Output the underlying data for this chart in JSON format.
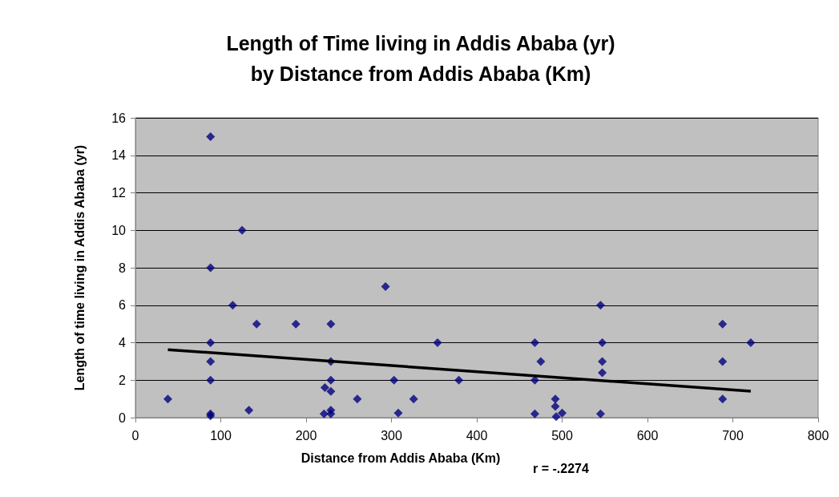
{
  "chart_data": {
    "type": "scatter",
    "title": "Length of Time living in Addis Ababa (yr)\nby Distance from Addis Ababa (Km)",
    "xlabel": "Distance from Addis Ababa (Km)",
    "ylabel": "Length of time living in Addis Ababa (yr)",
    "annotations": [
      "r = -.2274"
    ],
    "xlim": [
      0,
      800
    ],
    "xticks": [
      0,
      100,
      200,
      300,
      400,
      500,
      600,
      700,
      800
    ],
    "ylim": [
      0,
      16
    ],
    "yticks": [
      0,
      2,
      4,
      6,
      8,
      10,
      12,
      14,
      16
    ],
    "grid": "y",
    "marker": "diamond",
    "series": [
      {
        "color": "#000080",
        "x": [
          38,
          88,
          88,
          88,
          88,
          88,
          88,
          88,
          125,
          114,
          142,
          133,
          188,
          229,
          229,
          229,
          222,
          229,
          221,
          229,
          229,
          260,
          293,
          303,
          308,
          326,
          354,
          379,
          468,
          468,
          468,
          475,
          492,
          492,
          493,
          500,
          545,
          547,
          547,
          547,
          545,
          688,
          688,
          688,
          721
        ],
        "values": [
          1,
          15,
          8,
          4,
          3,
          2,
          0.1,
          0.2,
          10,
          6,
          5,
          0.4,
          5,
          5,
          3,
          2,
          1.6,
          1.4,
          0.2,
          0.4,
          0.2,
          1,
          7,
          2,
          0.25,
          1,
          4,
          2,
          4,
          2,
          0.2,
          3,
          1,
          0.6,
          0.05,
          0.25,
          6,
          4,
          3,
          2.4,
          0.2,
          5,
          3,
          1,
          4
        ]
      },
      {
        "type": "line",
        "color": "#000000",
        "marker": "none",
        "x": [
          38,
          721
        ],
        "values": [
          3.63,
          1.41
        ]
      }
    ]
  }
}
